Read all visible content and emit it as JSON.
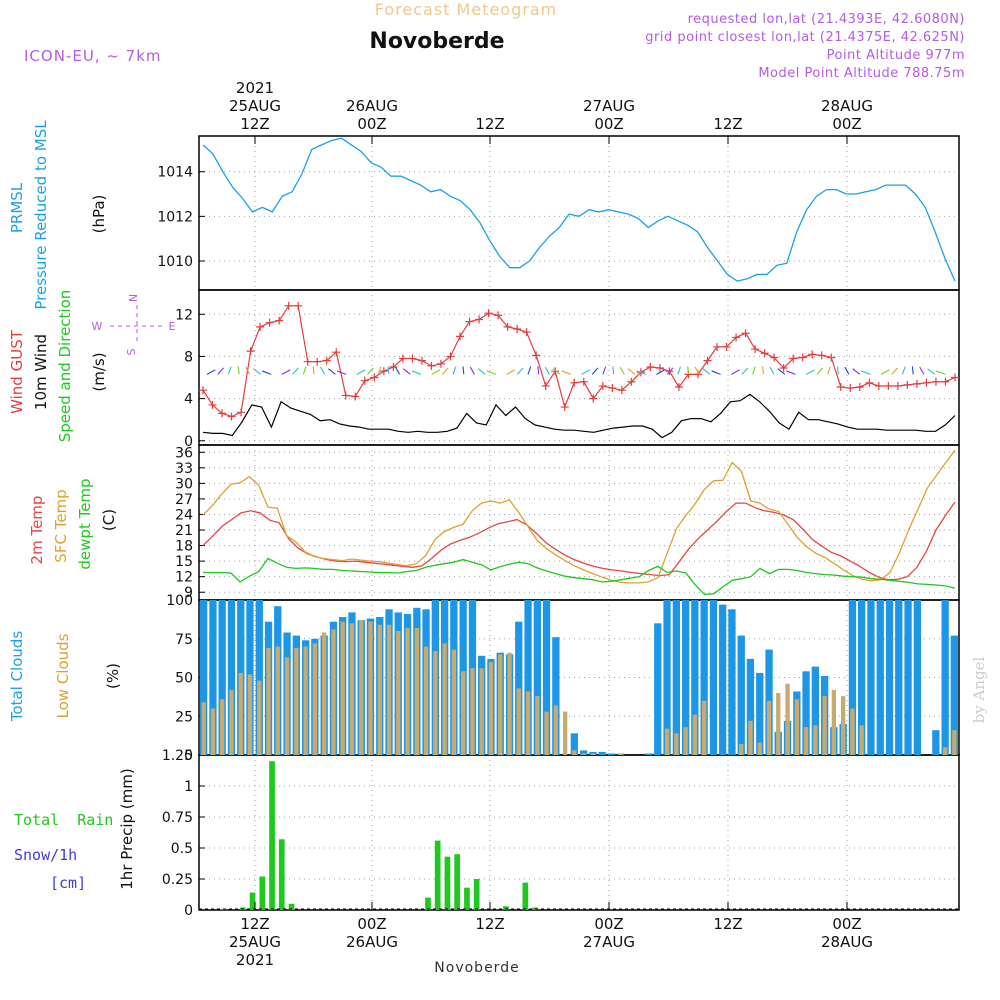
{
  "header": {
    "title_top": "Forecast Meteogram",
    "location": "Novoberde",
    "model": "ICON-EU, ~ 7km",
    "requested": "requested lon,lat (21.4393E, 42.6080N)",
    "grid_point": "grid point closest lon,lat (21.4375E, 42.625N)",
    "altitude": "Point Altitude 977m",
    "model_altitude": "Model Point Altitude 788.75m",
    "watermark": "by Angel",
    "bottom_location": "Novoberde"
  },
  "colors": {
    "pressure": "#1aa0e6",
    "gust": "#e63c3c",
    "wind": "#000000",
    "t2m": "#e64646",
    "sfc": "#e0a030",
    "dewpt": "#1ec81e",
    "total_clouds": "#1e96e6",
    "low_clouds": "#c8aa6e",
    "rain": "#1ec81e",
    "snow": "#3c3cdc",
    "label_purple": "#b45ae6",
    "title_orange": "#f0c88c",
    "grid": "#a0a0a0"
  },
  "chart_data": [
    {
      "type": "line",
      "panel": "pressure",
      "ylabel_left": [
        "PRMSL",
        "Pressure Reduced to MSL"
      ],
      "ylabel_right": "(hPa)",
      "ylim": [
        1008.7,
        1015.6
      ],
      "yticks": [
        1010,
        1012,
        1014
      ],
      "x": [
        0,
        1,
        2,
        3,
        4,
        5,
        6,
        7,
        8,
        9,
        10,
        11,
        12,
        13,
        14,
        15,
        16,
        17,
        18,
        19,
        20,
        21,
        22,
        23,
        24,
        25,
        26,
        27,
        28,
        29,
        30,
        31,
        32,
        33,
        34,
        35,
        36,
        37,
        38,
        39,
        40,
        41,
        42,
        43,
        44,
        45,
        46,
        47,
        48,
        49,
        50,
        51,
        52,
        53,
        54,
        55,
        56,
        57,
        58,
        59,
        60,
        61,
        62,
        63,
        64,
        65,
        66,
        67,
        68,
        69,
        70,
        71,
        72,
        73,
        74,
        75,
        76
      ],
      "series": [
        {
          "values": [
            1015.2,
            1014.8,
            1014.0,
            1013.3,
            1012.8,
            1012.2,
            1012.4,
            1012.2,
            1012.9,
            1013.1,
            1013.9,
            1015.0,
            1015.2,
            1015.4,
            1015.5,
            1015.2,
            1014.9,
            1014.4,
            1014.2,
            1013.8,
            1013.8,
            1013.6,
            1013.4,
            1013.1,
            1013.2,
            1012.9,
            1012.7,
            1012.3,
            1011.7,
            1010.9,
            1010.2,
            1009.7,
            1009.7,
            1010.0,
            1010.6,
            1011.1,
            1011.5,
            1012.1,
            1012.0,
            1012.3,
            1012.2,
            1012.3,
            1012.2,
            1012.1,
            1011.9,
            1011.5,
            1011.8,
            1012.0,
            1011.8,
            1011.6,
            1011.3,
            1010.6,
            1010.0,
            1009.4,
            1009.1,
            1009.2,
            1009.4,
            1009.4,
            1009.8,
            1009.9,
            1011.3,
            1012.3,
            1012.9,
            1013.2,
            1013.2,
            1013.0,
            1013.0,
            1013.1,
            1013.2,
            1013.4,
            1013.4,
            1013.4,
            1013.0,
            1012.4,
            1011.3,
            1010.1,
            1009.1
          ]
        }
      ]
    },
    {
      "type": "line",
      "panel": "wind",
      "ylabel_left": [
        "Wind GUST",
        "10m Wind",
        "Speed and Direction"
      ],
      "ylabel_right": "(m/s)",
      "compass": {
        "n": "N",
        "s": "S",
        "w": "W",
        "e": "E"
      },
      "ylim": [
        -0.4,
        14.3
      ],
      "yticks": [
        0,
        4,
        8,
        12
      ],
      "series": [
        {
          "name": "Wind GUST",
          "values": [
            4.8,
            3.4,
            2.6,
            2.3,
            2.7,
            8.5,
            10.8,
            11.2,
            11.4,
            12.8,
            12.8,
            7.5,
            7.5,
            7.6,
            8.4,
            4.3,
            4.2,
            5.7,
            6.0,
            6.6,
            7.0,
            7.8,
            7.8,
            7.6,
            7.1,
            7.3,
            8.0,
            9.9,
            11.3,
            11.5,
            12.1,
            11.9,
            10.8,
            10.6,
            10.3,
            8.1,
            5.2,
            6.6,
            3.2,
            5.5,
            5.6,
            4.0,
            5.2,
            5.0,
            4.8,
            5.6,
            6.5,
            7.0,
            6.9,
            6.6,
            5.1,
            6.3,
            6.3,
            7.6,
            8.9,
            8.9,
            9.8,
            10.2,
            8.7,
            8.3,
            7.9,
            6.9,
            7.8,
            7.9,
            8.2,
            8.1,
            7.9,
            5.1,
            5.0,
            5.1,
            5.5,
            5.2,
            5.2,
            5.2,
            5.3,
            5.4,
            5.5,
            5.6,
            5.6,
            6.0
          ]
        },
        {
          "name": "10m Wind",
          "values": [
            0.8,
            0.7,
            0.7,
            0.5,
            1.8,
            3.4,
            3.2,
            1.3,
            3.7,
            3.1,
            2.8,
            2.5,
            1.9,
            2.0,
            1.6,
            1.4,
            1.3,
            1.1,
            1.1,
            1.1,
            0.9,
            0.8,
            0.9,
            0.8,
            0.8,
            0.9,
            1.2,
            2.6,
            1.7,
            1.5,
            3.4,
            2.4,
            3.2,
            2.1,
            1.5,
            1.3,
            1.1,
            1.0,
            1.0,
            0.9,
            0.8,
            1.0,
            1.2,
            1.3,
            1.4,
            1.4,
            1.1,
            0.3,
            0.8,
            1.9,
            2.1,
            2.1,
            1.8,
            2.6,
            3.7,
            3.8,
            4.4,
            3.7,
            2.8,
            1.7,
            1.1,
            2.7,
            2.0,
            2.0,
            1.8,
            1.6,
            1.3,
            1.1,
            1.1,
            1.1,
            1.0,
            1.0,
            1.0,
            1.0,
            0.9,
            0.9,
            1.5,
            2.4
          ]
        }
      ]
    },
    {
      "type": "line",
      "panel": "temperature",
      "ylabel_left": [
        "2m Temp",
        "SFC Temp",
        "dewpt Temp"
      ],
      "ylabel_right": "(C)",
      "ylim": [
        7.5,
        37.4
      ],
      "yticks": [
        9,
        12,
        15,
        18,
        21,
        24,
        27,
        30,
        33,
        36
      ],
      "series": [
        {
          "name": "2m Temp",
          "values": [
            18.0,
            19.8,
            21.7,
            23.0,
            24.3,
            24.7,
            24.3,
            22.9,
            22.4,
            19.3,
            17.5,
            16.4,
            15.8,
            15.3,
            15.0,
            14.9,
            15.0,
            14.8,
            14.6,
            14.4,
            14.2,
            14.0,
            13.8,
            14.1,
            15.5,
            17.1,
            18.3,
            19.0,
            19.6,
            20.4,
            21.4,
            22.2,
            22.6,
            23.0,
            22.0,
            20.4,
            18.6,
            17.3,
            16.2,
            15.3,
            14.6,
            14.0,
            13.6,
            13.3,
            13.1,
            12.8,
            12.6,
            12.4,
            12.2,
            12.4,
            14.8,
            17.3,
            19.3,
            21.0,
            22.7,
            24.6,
            26.2,
            26.2,
            25.3,
            24.7,
            24.4,
            23.9,
            23.0,
            21.2,
            19.2,
            17.9,
            16.7,
            16.0,
            15.0,
            14.0,
            12.8,
            11.9,
            11.4,
            11.5,
            12.0,
            13.8,
            16.9,
            21.0,
            23.8,
            26.4
          ]
        },
        {
          "name": "SFC Temp",
          "values": [
            23.9,
            25.7,
            27.9,
            29.8,
            30.1,
            31.3,
            29.6,
            25.4,
            25.2,
            19.9,
            18.7,
            16.8,
            15.9,
            15.5,
            15.3,
            15.1,
            15.4,
            15.2,
            15.0,
            14.9,
            14.6,
            14.3,
            14.1,
            14.5,
            16.1,
            19.2,
            20.7,
            21.5,
            22.1,
            24.7,
            26.2,
            26.6,
            26.2,
            26.8,
            24.4,
            21.7,
            19.0,
            17.4,
            16.2,
            15.1,
            14.1,
            13.3,
            12.6,
            11.9,
            11.3,
            10.9,
            10.8,
            10.8,
            11.0,
            11.8,
            16.5,
            21.3,
            23.8,
            26.0,
            28.8,
            30.5,
            30.6,
            34.0,
            32.3,
            26.6,
            26.2,
            25.0,
            24.6,
            22.1,
            19.6,
            17.8,
            16.5,
            15.7,
            14.5,
            13.3,
            12.2,
            11.5,
            11.2,
            11.4,
            12.8,
            16.5,
            21.0,
            25.0,
            29.0,
            31.5,
            34.0,
            36.4
          ]
        },
        {
          "name": "dewpt Temp",
          "values": [
            12.8,
            12.8,
            12.8,
            12.7,
            11.0,
            12.1,
            13.0,
            15.5,
            14.6,
            13.8,
            13.6,
            13.7,
            13.6,
            13.4,
            13.4,
            13.2,
            13.1,
            13.0,
            12.9,
            12.8,
            12.8,
            12.7,
            13.0,
            13.2,
            13.8,
            14.2,
            14.5,
            14.8,
            15.3,
            14.8,
            14.3,
            13.3,
            13.9,
            14.4,
            14.8,
            14.5,
            13.7,
            13.1,
            12.6,
            12.1,
            11.8,
            11.6,
            11.4,
            11.0,
            11.1,
            11.4,
            11.7,
            12.0,
            13.2,
            14.0,
            12.8,
            13.1,
            12.7,
            10.5,
            8.6,
            8.7,
            10.0,
            11.3,
            11.6,
            12.0,
            13.6,
            12.6,
            13.4,
            13.4,
            13.2,
            12.8,
            12.6,
            12.4,
            12.3,
            12.1,
            12.0,
            11.9,
            11.6,
            11.5,
            11.3,
            11.1,
            10.9,
            10.6,
            10.5,
            10.4,
            10.2,
            9.8
          ]
        }
      ]
    },
    {
      "type": "bar",
      "panel": "clouds",
      "ylabel_left": [
        "Total Clouds",
        "Low Clouds"
      ],
      "ylabel_right": "(%)",
      "ylim": [
        0,
        100
      ],
      "yticks": [
        0,
        25,
        50,
        75,
        100
      ],
      "series": [
        {
          "name": "Total Clouds",
          "values": [
            100,
            100,
            100,
            100,
            100,
            100,
            100,
            86,
            96,
            79,
            77,
            74,
            75,
            77,
            86,
            89,
            92,
            87,
            88,
            89,
            94,
            92,
            91,
            95,
            94,
            100,
            100,
            100,
            100,
            100,
            64,
            62,
            66,
            65,
            86,
            100,
            100,
            100,
            76,
            0,
            14,
            3,
            2,
            2,
            1,
            1,
            0,
            0,
            1,
            85,
            100,
            100,
            100,
            100,
            100,
            100,
            97,
            94,
            77,
            62,
            53,
            68,
            15,
            22,
            41,
            54,
            57,
            51,
            18,
            20,
            100,
            100,
            100,
            100,
            100,
            100,
            100,
            100,
            0,
            16,
            100,
            77
          ]
        },
        {
          "name": "Low Clouds",
          "values": [
            34,
            30,
            36,
            42,
            53,
            52,
            48,
            69,
            70,
            63,
            69,
            70,
            72,
            79,
            81,
            86,
            85,
            87,
            86,
            84,
            84,
            80,
            82,
            82,
            70,
            67,
            72,
            68,
            54,
            56,
            56,
            60,
            65,
            66,
            43,
            41,
            38,
            28,
            32,
            28,
            3,
            1,
            1,
            0,
            0,
            1,
            0,
            0,
            0,
            0,
            17,
            14,
            18,
            26,
            35,
            0,
            0,
            0,
            7,
            22,
            8,
            35,
            40,
            46,
            36,
            18,
            19,
            38,
            42,
            38,
            30,
            19,
            0,
            0,
            0,
            0,
            0,
            0,
            0,
            0,
            5,
            16
          ]
        }
      ]
    },
    {
      "type": "bar",
      "panel": "precip",
      "ylabel_left": [
        "Total  Rain",
        "Snow/1h",
        "[cm]"
      ],
      "ylabel_right": "1hr Precip (mm)",
      "ylim": [
        0,
        1.25
      ],
      "yticks": [
        0,
        0.25,
        0.5,
        0.75,
        1,
        1.25
      ],
      "ytick_labels": [
        "0",
        "0.25",
        "0.5",
        "0.75",
        "1",
        "1.25"
      ],
      "series": [
        {
          "name": "Total Rain",
          "values": [
            0,
            0,
            0.01,
            0,
            0.02,
            0.14,
            0.27,
            1.2,
            0.57,
            0.05,
            0,
            0,
            0,
            0,
            0,
            0,
            0,
            0,
            0,
            0,
            0,
            0,
            0,
            0.1,
            0.56,
            0.43,
            0.45,
            0.18,
            0.25,
            0,
            0,
            0.03,
            0,
            0.22,
            0.02,
            0,
            0,
            0,
            0,
            0,
            0,
            0,
            0,
            0,
            0,
            0,
            0,
            0,
            0,
            0,
            0,
            0,
            0,
            0,
            0,
            0,
            0,
            0,
            0,
            0,
            0,
            0,
            0,
            0,
            0,
            0,
            0,
            0,
            0,
            0,
            0,
            0,
            0,
            0,
            0,
            0,
            0,
            0
          ]
        }
      ]
    }
  ],
  "time_axis": {
    "top_labels": [
      {
        "lines": [
          "2021",
          "25AUG",
          "12Z"
        ]
      },
      {
        "lines": [
          "26AUG",
          "00Z"
        ]
      },
      {
        "lines": [
          "12Z"
        ]
      },
      {
        "lines": [
          "27AUG",
          "00Z"
        ]
      },
      {
        "lines": [
          "12Z"
        ]
      },
      {
        "lines": [
          "28AUG",
          "00Z"
        ]
      }
    ],
    "bottom_labels": [
      {
        "lines": [
          "12Z",
          "25AUG",
          "2021"
        ]
      },
      {
        "lines": [
          "00Z",
          "26AUG"
        ]
      },
      {
        "lines": [
          "12Z"
        ]
      },
      {
        "lines": [
          "00Z",
          "27AUG"
        ]
      },
      {
        "lines": [
          "12Z"
        ]
      },
      {
        "lines": [
          "00Z",
          "28AUG"
        ]
      }
    ]
  }
}
